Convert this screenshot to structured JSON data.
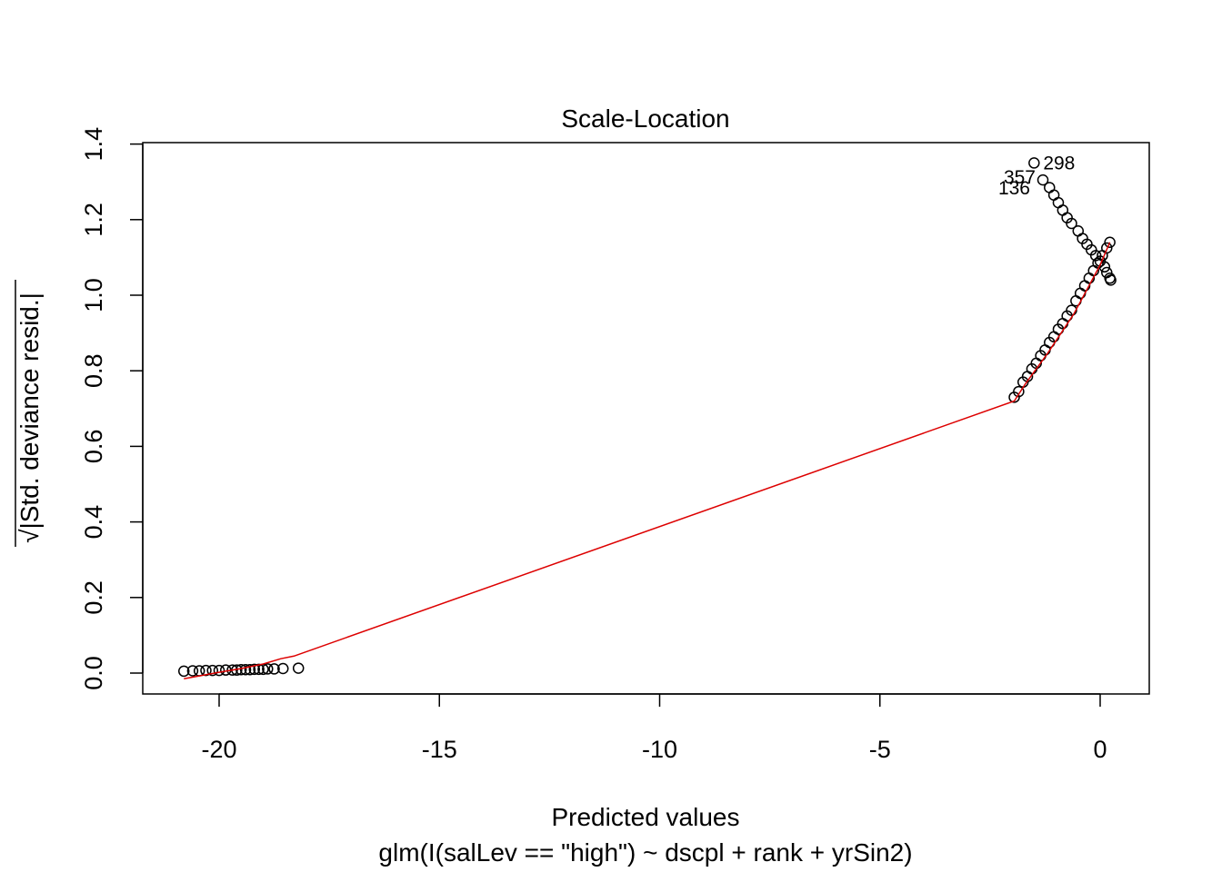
{
  "chart_data": {
    "type": "scatter",
    "title": "Scale-Location",
    "xlabel": "Predicted values",
    "subtitle": "glm(I(salLev == \"high\") ~ dscpl + rank + yrSin2)",
    "ylabel_sqrt_symbol": "√",
    "ylabel": "|Std. deviance resid.|",
    "xlim": [
      -20.85,
      0.25
    ],
    "ylim": [
      0.0,
      1.35
    ],
    "xticks": [
      -20,
      -15,
      -10,
      -5,
      0
    ],
    "yticks": [
      0.0,
      0.2,
      0.4,
      0.6,
      0.8,
      1.0,
      1.2,
      1.4
    ],
    "xtick_labels": [
      "-20",
      "-15",
      "-10",
      "-5",
      "0"
    ],
    "ytick_labels": [
      "0.0",
      "0.2",
      "0.4",
      "0.6",
      "0.8",
      "1.0",
      "1.2",
      "1.4"
    ],
    "grid": false,
    "series": [
      {
        "marker": "open-circle",
        "color": "#000000",
        "points": [
          [
            -20.8,
            0.005
          ],
          [
            -20.6,
            0.006
          ],
          [
            -20.45,
            0.006
          ],
          [
            -20.3,
            0.007
          ],
          [
            -20.15,
            0.007
          ],
          [
            -20.0,
            0.007
          ],
          [
            -19.85,
            0.008
          ],
          [
            -19.7,
            0.008
          ],
          [
            -19.6,
            0.008
          ],
          [
            -19.5,
            0.009
          ],
          [
            -19.4,
            0.009
          ],
          [
            -19.3,
            0.009
          ],
          [
            -19.2,
            0.01
          ],
          [
            -19.1,
            0.01
          ],
          [
            -19.0,
            0.01
          ],
          [
            -18.9,
            0.011
          ],
          [
            -18.75,
            0.011
          ],
          [
            -18.55,
            0.012
          ],
          [
            -18.2,
            0.013
          ],
          [
            -1.95,
            0.73
          ],
          [
            -1.85,
            0.745
          ],
          [
            -1.75,
            0.77
          ],
          [
            -1.65,
            0.785
          ],
          [
            -1.55,
            0.805
          ],
          [
            -1.45,
            0.82
          ],
          [
            -1.35,
            0.84
          ],
          [
            -1.25,
            0.855
          ],
          [
            -1.15,
            0.875
          ],
          [
            -1.05,
            0.89
          ],
          [
            -0.95,
            0.91
          ],
          [
            -0.85,
            0.925
          ],
          [
            -0.75,
            0.945
          ],
          [
            -0.65,
            0.96
          ],
          [
            -0.55,
            0.985
          ],
          [
            -0.45,
            1.005
          ],
          [
            -0.35,
            1.025
          ],
          [
            -0.25,
            1.045
          ],
          [
            -0.15,
            1.065
          ],
          [
            -0.05,
            1.085
          ],
          [
            0.05,
            1.105
          ],
          [
            0.15,
            1.125
          ],
          [
            0.22,
            1.14
          ],
          [
            -1.5,
            1.35
          ],
          [
            -1.3,
            1.305
          ],
          [
            -1.15,
            1.285
          ],
          [
            -1.05,
            1.265
          ],
          [
            -0.95,
            1.245
          ],
          [
            -0.85,
            1.225
          ],
          [
            -0.75,
            1.205
          ],
          [
            -0.65,
            1.19
          ],
          [
            -0.5,
            1.17
          ],
          [
            -0.4,
            1.15
          ],
          [
            -0.3,
            1.135
          ],
          [
            -0.2,
            1.12
          ],
          [
            -0.1,
            1.105
          ],
          [
            0.0,
            1.09
          ],
          [
            0.1,
            1.075
          ],
          [
            0.15,
            1.06
          ],
          [
            0.22,
            1.045
          ],
          [
            0.24,
            1.04
          ]
        ]
      }
    ],
    "smoother": {
      "color": "#dd0000",
      "points": [
        [
          -20.8,
          -0.015
        ],
        [
          -20.0,
          0.002
        ],
        [
          -19.5,
          0.012
        ],
        [
          -19.0,
          0.024
        ],
        [
          -18.6,
          0.038
        ],
        [
          -18.3,
          0.045
        ],
        [
          -1.95,
          0.72
        ],
        [
          -1.7,
          0.765
        ],
        [
          -1.2,
          0.845
        ],
        [
          -0.6,
          0.95
        ],
        [
          0.0,
          1.08
        ],
        [
          0.22,
          1.14
        ]
      ]
    },
    "labeled_points": [
      {
        "label": "298",
        "x": -1.5,
        "y": 1.35,
        "pos": "right"
      },
      {
        "label": "357",
        "x": -1.3,
        "y": 1.305,
        "pos": "left"
      },
      {
        "label": "136",
        "x": -1.3,
        "y": 1.305,
        "pos": "left-below"
      }
    ]
  }
}
